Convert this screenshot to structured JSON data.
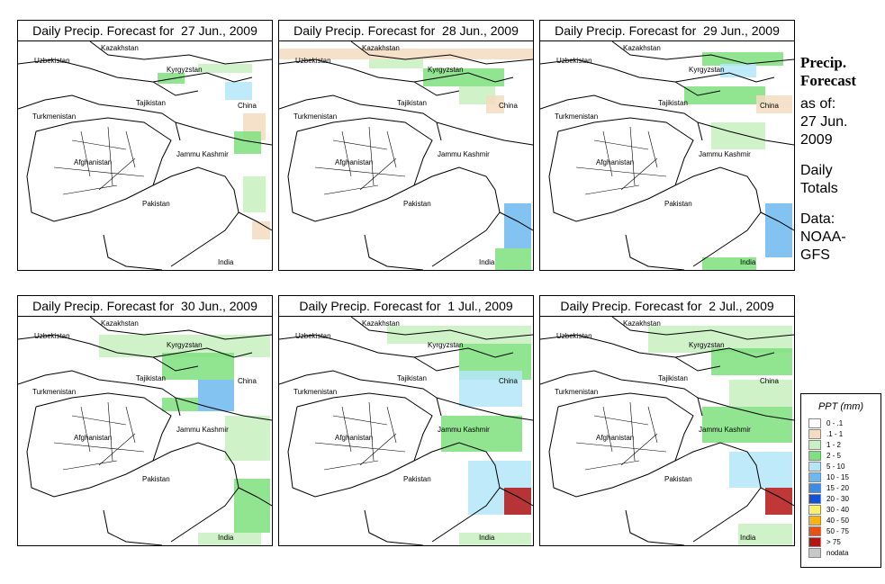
{
  "panels": [
    {
      "title": "Daily Precip. Forecast for  27 Jun., 2009"
    },
    {
      "title": "Daily Precip. Forecast for  28 Jun., 2009"
    },
    {
      "title": "Daily Precip. Forecast for  29 Jun., 2009"
    },
    {
      "title": "Daily Precip. Forecast for  30 Jun., 2009"
    },
    {
      "title": "Daily Precip. Forecast for  1 Jul., 2009"
    },
    {
      "title": "Daily Precip. Forecast for  2 Jul., 2009"
    }
  ],
  "countries": {
    "kazakhstan": "Kazakhstan",
    "uzbekistan": "Uzbekistan",
    "kyrgyzstan": "Kyrgyzstan",
    "tajikistan": "Tajikistan",
    "china": "China",
    "turkmenistan": "Turkmenistan",
    "afghanistan": "Afghanistan",
    "jammu_kashmir": "Jammu Kashmir",
    "pakistan": "Pakistan",
    "india": "India"
  },
  "side_info": {
    "title_line1": "Precip.",
    "title_line2": "Forecast",
    "as_of_label": "as of:",
    "date_line1": "27 Jun.",
    "date_line2": "2009",
    "totals_line1": "Daily",
    "totals_line2": "Totals",
    "data_line1": "Data:",
    "data_line2": "NOAA-",
    "data_line3": "GFS"
  },
  "legend": {
    "title": "PPT (mm)",
    "items": [
      {
        "label": "0 - .1",
        "color": "#ffffff"
      },
      {
        "label": ".1 - 1",
        "color": "#f3dcc0"
      },
      {
        "label": "1 - 2",
        "color": "#c8f0c0"
      },
      {
        "label": "2 - 5",
        "color": "#7ee07e"
      },
      {
        "label": "5 - 10",
        "color": "#b4e6f8"
      },
      {
        "label": "10 - 15",
        "color": "#6cb8f0"
      },
      {
        "label": "15 - 20",
        "color": "#3c8ce6"
      },
      {
        "label": "20 - 30",
        "color": "#1450d2"
      },
      {
        "label": "30 - 40",
        "color": "#f8f070"
      },
      {
        "label": "40 - 50",
        "color": "#f8b414"
      },
      {
        "label": "50 - 75",
        "color": "#e85014"
      },
      {
        "label": "> 75",
        "color": "#b41414"
      },
      {
        "label": "nodata",
        "color": "#c8c8c8"
      }
    ]
  }
}
